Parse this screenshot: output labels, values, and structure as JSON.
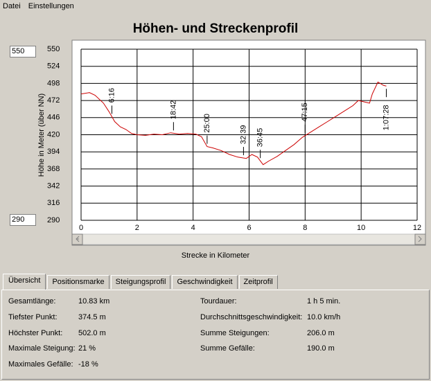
{
  "menu": [
    "Datei",
    "Einstellungen"
  ],
  "range_inputs": {
    "max": "550",
    "min": "290"
  },
  "chart_data": {
    "type": "line",
    "title": "Höhen- und Streckenprofil",
    "x_label": "Strecke in Kilometer",
    "y_label": "Höhe in Meter (über NN)",
    "x": [
      0,
      0.3,
      0.5,
      0.8,
      1.0,
      1.2,
      1.4,
      1.6,
      1.8,
      2.0,
      2.3,
      2.6,
      2.9,
      3.2,
      3.5,
      3.8,
      4.1,
      4.3,
      4.5,
      4.7,
      5.0,
      5.3,
      5.6,
      5.9,
      6.1,
      6.3,
      6.5,
      6.7,
      7.0,
      7.3,
      7.6,
      7.9,
      8.2,
      8.5,
      8.8,
      9.1,
      9.4,
      9.7,
      9.9,
      10.1,
      10.3,
      10.4,
      10.6,
      10.8,
      10.9
    ],
    "values": [
      482,
      484,
      480,
      468,
      455,
      440,
      432,
      428,
      422,
      420,
      419,
      421,
      420,
      423,
      421,
      422,
      421,
      417,
      402,
      400,
      396,
      390,
      386,
      384,
      390,
      386,
      374.5,
      380,
      387,
      396,
      405,
      416,
      424,
      432,
      440,
      448,
      456,
      464,
      472,
      470,
      468,
      482,
      500,
      495,
      494
    ],
    "color": "#cc0000",
    "xlim": [
      0,
      12
    ],
    "xticks": [
      0,
      2,
      4,
      6,
      8,
      10,
      12
    ],
    "ylim": [
      290,
      550
    ],
    "yticks": [
      290,
      316,
      342,
      368,
      394,
      420,
      446,
      472,
      498,
      524,
      550
    ],
    "grid": true,
    "annotations": [
      {
        "label": "6:16",
        "x": 1.1
      },
      {
        "label": "18:42",
        "x": 3.3
      },
      {
        "label": "25:00",
        "x": 4.5
      },
      {
        "label": "32:39",
        "x": 5.8
      },
      {
        "label": "36:45",
        "x": 6.4
      },
      {
        "label": "47:15",
        "x": 8.0
      },
      {
        "label": "1:07:28",
        "x": 10.9
      }
    ]
  },
  "tabs": [
    "Übersicht",
    "Positionsmarke",
    "Steigungsprofil",
    "Geschwindigkeit",
    "Zeitprofil"
  ],
  "summary": {
    "left": [
      [
        "Gesamtlänge:",
        "10.83 km"
      ],
      [
        "Tiefster Punkt:",
        "374.5 m"
      ],
      [
        "Höchster Punkt:",
        "502.0 m"
      ],
      [
        "Maximale Steigung:",
        "21 %"
      ],
      [
        "Maximales Gefälle:",
        "-18 %"
      ]
    ],
    "right": [
      [
        "Tourdauer:",
        "1 h 5 min."
      ],
      [
        "Durchschnittsgeschwindigkeit:",
        "10.0 km/h"
      ],
      [
        "Summe Steigungen:",
        "206.0 m"
      ],
      [
        "Summe Gefälle:",
        "190.0 m"
      ]
    ]
  }
}
